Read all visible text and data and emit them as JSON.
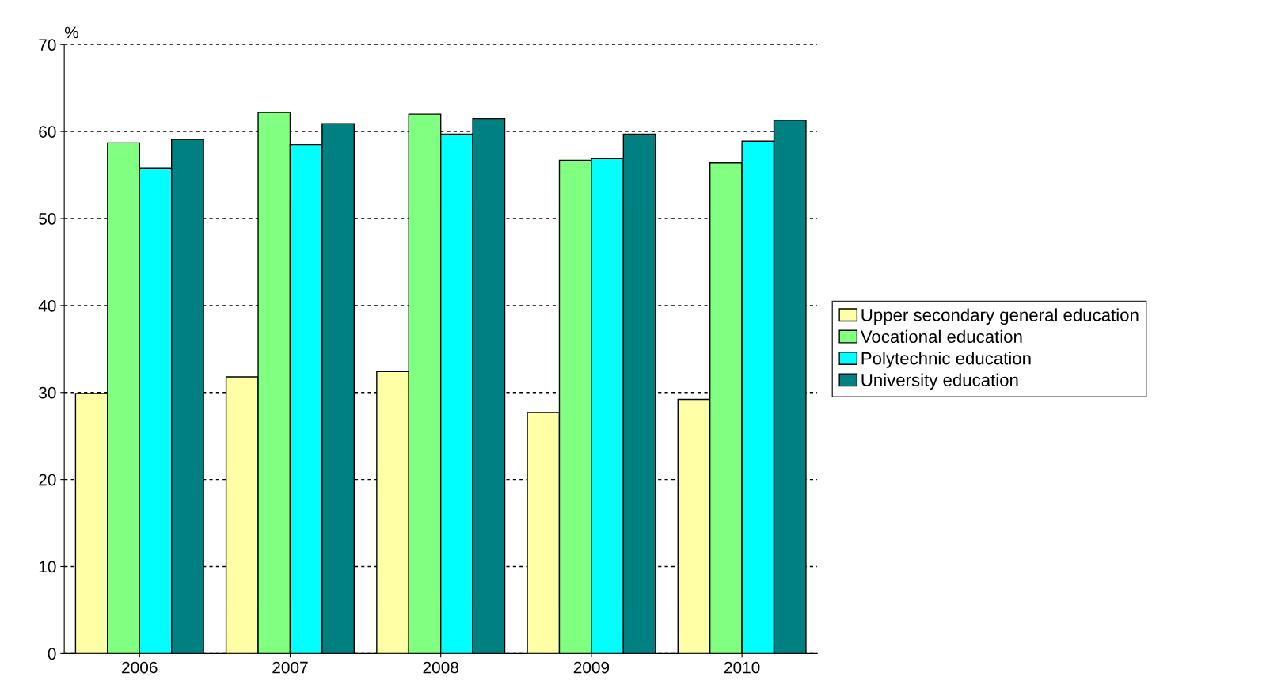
{
  "chart_data": {
    "type": "bar",
    "ylabel": "%",
    "categories": [
      "2006",
      "2007",
      "2008",
      "2009",
      "2010"
    ],
    "series": [
      {
        "name": "Upper secondary general education",
        "color": "#ffffa6",
        "values": [
          29.9,
          31.8,
          32.4,
          27.7,
          29.2
        ]
      },
      {
        "name": "Vocational education",
        "color": "#80ff80",
        "values": [
          58.7,
          62.2,
          62.0,
          56.7,
          56.4
        ]
      },
      {
        "name": "Polytechnic education",
        "color": "#00ffff",
        "values": [
          55.8,
          58.5,
          59.7,
          56.9,
          58.9
        ]
      },
      {
        "name": "University education",
        "color": "#008080",
        "values": [
          59.1,
          60.9,
          61.5,
          59.7,
          61.3
        ]
      }
    ],
    "ylim": [
      0,
      70
    ],
    "yticks": [
      0,
      10,
      20,
      30,
      40,
      50,
      60,
      70
    ],
    "grid": "y",
    "legend": "right"
  }
}
